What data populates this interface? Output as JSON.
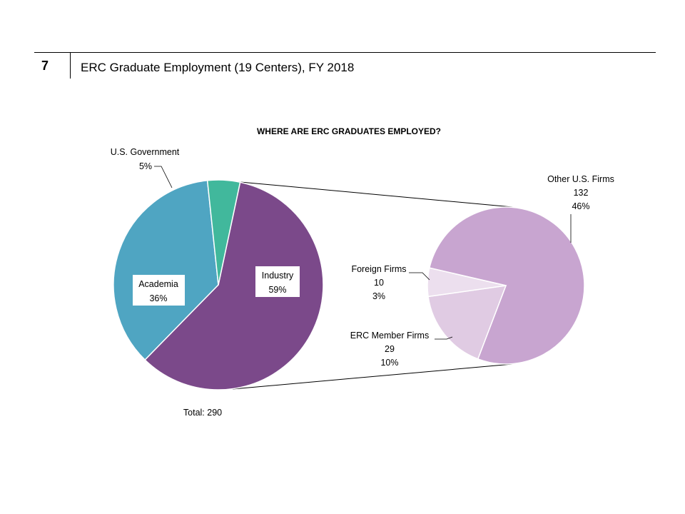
{
  "header": {
    "slide_number": "7",
    "title": "ERC Graduate Employment (19 Centers), FY 2018"
  },
  "chart_data": [
    {
      "type": "pie",
      "title": "WHERE ARE ERC GRADUATES EMPLOYED?",
      "slices": [
        {
          "name": "Industry",
          "percent_label": "59%",
          "value": 59,
          "color": "#7b498a"
        },
        {
          "name": "Academia",
          "percent_label": "36%",
          "value": 36,
          "color": "#4fa5c2"
        },
        {
          "name": "U.S. Government",
          "percent_label": "5%",
          "value": 5,
          "color": "#41b89c"
        }
      ],
      "total_label": "Total: 290",
      "exploded_slice": "Industry"
    },
    {
      "type": "pie",
      "title": "",
      "parent_slice": "Industry",
      "slices": [
        {
          "name": "Other U.S. Firms",
          "count_label": "132",
          "percent_label": "46%",
          "value": 132,
          "color": "#c8a5d0"
        },
        {
          "name": "ERC Member Firms",
          "count_label": "29",
          "percent_label": "10%",
          "value": 29,
          "color": "#e0cbe3"
        },
        {
          "name": "Foreign Firms",
          "count_label": "10",
          "percent_label": "3%",
          "value": 10,
          "color": "#ecdfee"
        }
      ]
    }
  ]
}
